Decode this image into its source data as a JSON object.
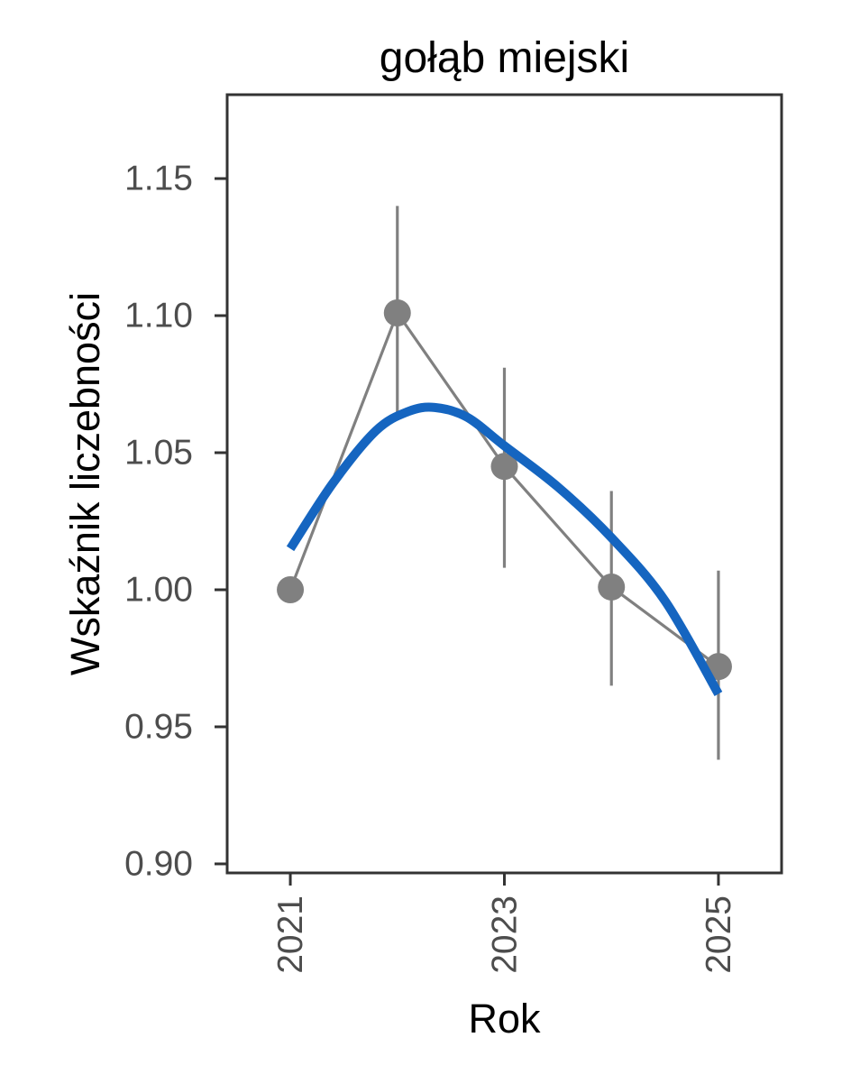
{
  "title": "gołąb miejski",
  "chart_data": {
    "type": "line",
    "title": "gołąb miejski",
    "xlabel": "Rok",
    "ylabel": "Wskaźnik liczebności",
    "x": [
      2021,
      2022,
      2023,
      2024,
      2025
    ],
    "series": [
      {
        "name": "abundance-index",
        "type": "points-with-error-bars",
        "values": [
          1.0,
          1.101,
          1.045,
          1.001,
          0.972
        ],
        "ci_low": [
          null,
          1.062,
          1.008,
          0.965,
          0.938
        ],
        "ci_high": [
          null,
          1.14,
          1.081,
          1.036,
          1.007
        ],
        "color": "#808080"
      },
      {
        "name": "loess-smooth",
        "type": "smooth-curve",
        "color": "#1565c0",
        "points": [
          [
            2021.0,
            1.015
          ],
          [
            2021.4,
            1.039
          ],
          [
            2021.8,
            1.058
          ],
          [
            2022.1,
            1.065
          ],
          [
            2022.35,
            1.0665
          ],
          [
            2022.65,
            1.063
          ],
          [
            2023.0,
            1.0525
          ],
          [
            2023.5,
            1.0375
          ],
          [
            2024.0,
            1.019
          ],
          [
            2024.5,
            0.996
          ],
          [
            2025.0,
            0.962
          ]
        ]
      }
    ],
    "x_ticks": [
      2021,
      2023,
      2025
    ],
    "y_ticks": [
      0.9,
      0.95,
      1.0,
      1.05,
      1.1,
      1.15
    ],
    "xlim": [
      2020.41,
      2025.59
    ],
    "ylim": [
      0.8967,
      1.1806
    ],
    "grid": false,
    "legend": false
  },
  "colors": {
    "point_and_errorbar": "#808080",
    "connecting_line": "#808080",
    "smooth_line": "#1565c0",
    "panel_border": "#333333",
    "tick_mark": "#333333",
    "tick_label": "#4d4d4d",
    "axis_title": "#000000",
    "plot_title": "#000000",
    "background": "#ffffff"
  }
}
